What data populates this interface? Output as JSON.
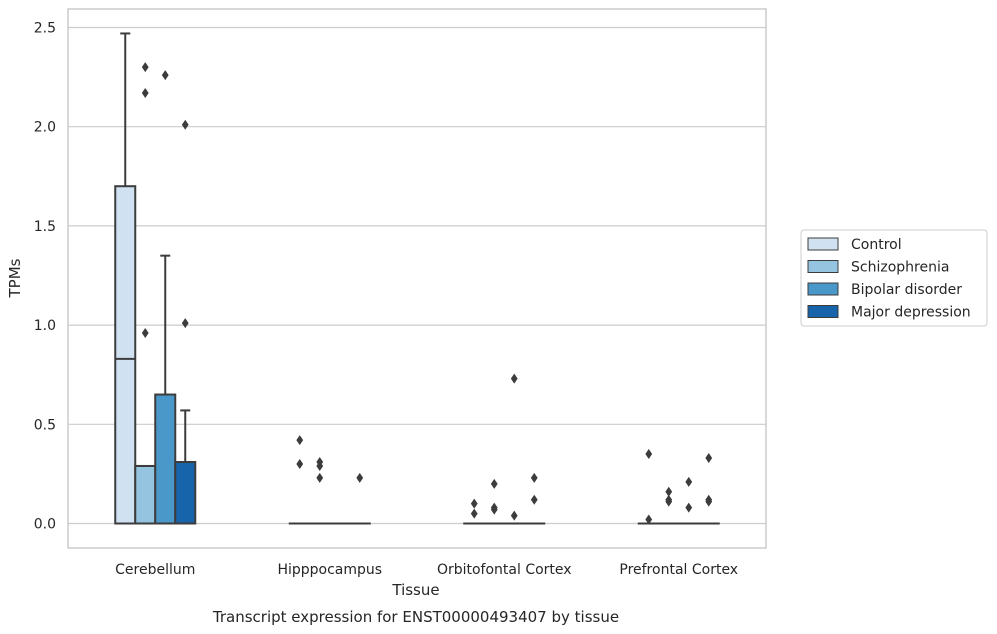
{
  "chart_data": {
    "type": "boxplot",
    "title": "",
    "caption": "Transcript expression for ENST00000493407 by tissue",
    "xlabel": "Tissue",
    "ylabel": "TPMs",
    "ylim": [
      -0.12,
      2.6
    ],
    "yticks": [
      0.0,
      0.5,
      1.0,
      1.5,
      2.0,
      2.5
    ],
    "ytick_labels": [
      "0.0",
      "0.5",
      "1.0",
      "1.5",
      "2.0",
      "2.5"
    ],
    "grid": "horizontal",
    "legend_position": "right",
    "categories": [
      "Cerebellum",
      "Hipppocampus",
      "Orbitofontal Cortex",
      "Prefrontal Cortex"
    ],
    "series": [
      {
        "name": "Control",
        "color": "#d0e1f2",
        "boxes": [
          {
            "q1": 0.0,
            "median": 0.83,
            "q3": 1.7,
            "whisker_low": 0.0,
            "whisker_high": 2.47,
            "outliers": []
          },
          {
            "q1": 0.0,
            "median": 0.0,
            "q3": 0.0,
            "whisker_low": 0.0,
            "whisker_high": 0.0,
            "outliers": [
              0.42,
              0.3
            ]
          },
          {
            "q1": 0.0,
            "median": 0.0,
            "q3": 0.0,
            "whisker_low": 0.0,
            "whisker_high": 0.0,
            "outliers": [
              0.1,
              0.05
            ]
          },
          {
            "q1": 0.0,
            "median": 0.0,
            "q3": 0.0,
            "whisker_low": 0.0,
            "whisker_high": 0.0,
            "outliers": [
              0.35,
              0.02
            ]
          }
        ]
      },
      {
        "name": "Schizophrenia",
        "color": "#94c4df",
        "boxes": [
          {
            "q1": 0.0,
            "median": 0.29,
            "q3": 0.29,
            "whisker_low": 0.0,
            "whisker_high": 0.29,
            "outliers": [
              2.3,
              2.17,
              0.96
            ]
          },
          {
            "q1": 0.0,
            "median": 0.0,
            "q3": 0.0,
            "whisker_low": 0.0,
            "whisker_high": 0.0,
            "outliers": [
              0.31,
              0.29,
              0.23
            ]
          },
          {
            "q1": 0.0,
            "median": 0.0,
            "q3": 0.0,
            "whisker_low": 0.0,
            "whisker_high": 0.0,
            "outliers": [
              0.2,
              0.08,
              0.07
            ]
          },
          {
            "q1": 0.0,
            "median": 0.0,
            "q3": 0.0,
            "whisker_low": 0.0,
            "whisker_high": 0.0,
            "outliers": [
              0.16,
              0.12,
              0.11
            ]
          }
        ]
      },
      {
        "name": "Bipolar disorder",
        "color": "#4a98c9",
        "boxes": [
          {
            "q1": 0.0,
            "median": 0.0,
            "q3": 0.65,
            "whisker_low": 0.0,
            "whisker_high": 1.35,
            "outliers": [
              2.26
            ]
          },
          {
            "q1": 0.0,
            "median": 0.0,
            "q3": 0.0,
            "whisker_low": 0.0,
            "whisker_high": 0.0,
            "outliers": []
          },
          {
            "q1": 0.0,
            "median": 0.0,
            "q3": 0.0,
            "whisker_low": 0.0,
            "whisker_high": 0.0,
            "outliers": [
              0.73,
              0.04
            ]
          },
          {
            "q1": 0.0,
            "median": 0.0,
            "q3": 0.0,
            "whisker_low": 0.0,
            "whisker_high": 0.0,
            "outliers": [
              0.21,
              0.08
            ]
          }
        ]
      },
      {
        "name": "Major depression",
        "color": "#1764ab",
        "boxes": [
          {
            "q1": 0.0,
            "median": 0.0,
            "q3": 0.31,
            "whisker_low": 0.0,
            "whisker_high": 0.57,
            "outliers": [
              2.01,
              1.01
            ]
          },
          {
            "q1": 0.0,
            "median": 0.0,
            "q3": 0.0,
            "whisker_low": 0.0,
            "whisker_high": 0.0,
            "outliers": [
              0.23
            ]
          },
          {
            "q1": 0.0,
            "median": 0.0,
            "q3": 0.0,
            "whisker_low": 0.0,
            "whisker_high": 0.0,
            "outliers": [
              0.23,
              0.12
            ]
          },
          {
            "q1": 0.0,
            "median": 0.0,
            "q3": 0.0,
            "whisker_low": 0.0,
            "whisker_high": 0.0,
            "outliers": [
              0.33,
              0.12,
              0.11
            ]
          }
        ]
      }
    ]
  }
}
